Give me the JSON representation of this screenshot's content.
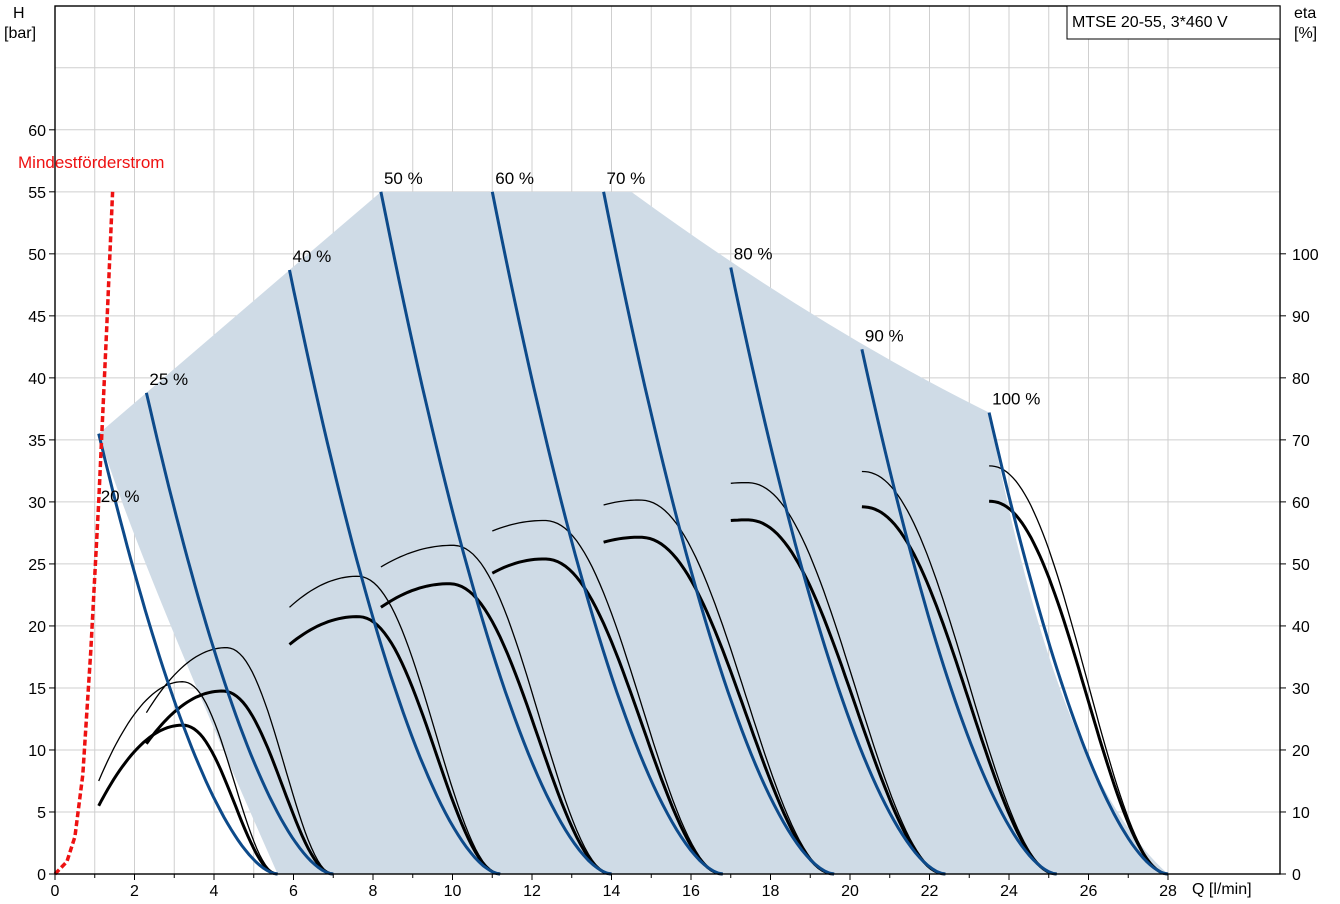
{
  "chart_data": {
    "type": "line",
    "title": "MTSE 20-55, 3*460 V",
    "x_axis": {
      "label": "Q [l/min]",
      "min": 0,
      "max": 28,
      "ticks": [
        0,
        2,
        4,
        6,
        8,
        10,
        12,
        14,
        16,
        18,
        20,
        22,
        24,
        26,
        28
      ]
    },
    "y_axis_left": {
      "label_top": "H",
      "label_unit": "[bar]",
      "min": 0,
      "max": 60,
      "ticks": [
        0,
        5,
        10,
        15,
        20,
        25,
        30,
        35,
        40,
        45,
        50,
        55,
        60
      ]
    },
    "y_axis_right": {
      "label_top": "eta",
      "label_unit": "[%]",
      "min": 0,
      "max": 100,
      "ticks": [
        0,
        10,
        20,
        30,
        40,
        50,
        60,
        70,
        80,
        90,
        100
      ]
    },
    "grid": true,
    "colors": {
      "head_curve": "#0d4a8a",
      "operating_area": "#cfdbe6",
      "min_flow": "#ee1111",
      "efficiency": "#000000"
    },
    "min_flow": {
      "label": "Mindestförderstrom",
      "points": [
        [
          0,
          0
        ],
        [
          0.3,
          1
        ],
        [
          0.5,
          3
        ],
        [
          0.7,
          8
        ],
        [
          0.9,
          18
        ],
        [
          1.1,
          30
        ],
        [
          1.3,
          44
        ],
        [
          1.45,
          55
        ]
      ]
    },
    "operating_envelope": [
      [
        1.1,
        35.5
      ],
      [
        2.3,
        38.8
      ],
      [
        5.9,
        48.7
      ],
      [
        8.2,
        55
      ],
      [
        14.5,
        55
      ],
      [
        23.5,
        37.2
      ],
      [
        28,
        0
      ],
      [
        1.6,
        0
      ]
    ],
    "speed_curves": [
      {
        "label": "20 %",
        "q_start": 1.1,
        "h_start": 35.5,
        "q_end": 5.6
      },
      {
        "label": "25 %",
        "q_start": 2.3,
        "h_start": 38.8,
        "q_end": 7.0
      },
      {
        "label": "40 %",
        "q_start": 5.9,
        "h_start": 48.7,
        "q_end": 11.2
      },
      {
        "label": "50 %",
        "q_start": 8.2,
        "h_start": 55.0,
        "q_end": 14.0
      },
      {
        "label": "60 %",
        "q_start": 11.0,
        "h_start": 55.0,
        "q_end": 16.8
      },
      {
        "label": "70 %",
        "q_start": 13.8,
        "h_start": 55.0,
        "q_end": 19.6
      },
      {
        "label": "80 %",
        "q_start": 17.0,
        "h_start": 48.9,
        "q_end": 22.4
      },
      {
        "label": "90 %",
        "q_start": 20.3,
        "h_start": 42.3,
        "q_end": 25.2
      },
      {
        "label": "100 %",
        "q_start": 23.5,
        "h_start": 37.2,
        "q_end": 28.0
      }
    ],
    "efficiency_curves": [
      {
        "q_start": 1.1,
        "q_peak": 3.2,
        "eta_peak": 24,
        "eta_start": 11,
        "q_end": 5.6,
        "weight": "thick"
      },
      {
        "q_start": 1.1,
        "q_peak": 3.2,
        "eta_peak": 31,
        "eta_start": 15,
        "q_end": 5.6,
        "weight": "thin"
      },
      {
        "q_start": 2.3,
        "q_peak": 4.2,
        "eta_peak": 29.5,
        "eta_start": 21,
        "q_end": 7.0,
        "weight": "thick"
      },
      {
        "q_start": 2.3,
        "q_peak": 4.3,
        "eta_peak": 36.5,
        "eta_start": 26,
        "q_end": 7.0,
        "weight": "thin"
      },
      {
        "q_start": 5.9,
        "q_peak": 7.6,
        "eta_peak": 41.5,
        "eta_start": 37,
        "q_end": 11.2,
        "weight": "thick"
      },
      {
        "q_start": 5.9,
        "q_peak": 7.6,
        "eta_peak": 48,
        "eta_start": 43,
        "q_end": 11.2,
        "weight": "thin"
      },
      {
        "q_start": 8.2,
        "q_peak": 9.9,
        "eta_peak": 46.8,
        "eta_start": 43,
        "q_end": 14.0,
        "weight": "thick"
      },
      {
        "q_start": 8.2,
        "q_peak": 10.0,
        "eta_peak": 53,
        "eta_start": 49.5,
        "q_end": 14.0,
        "weight": "thin"
      },
      {
        "q_start": 11.0,
        "q_peak": 12.3,
        "eta_peak": 50.8,
        "eta_start": 48.5,
        "q_end": 16.8,
        "weight": "thick"
      },
      {
        "q_start": 11.0,
        "q_peak": 12.3,
        "eta_peak": 57,
        "eta_start": 55.3,
        "q_end": 16.8,
        "weight": "thin"
      },
      {
        "q_start": 13.8,
        "q_peak": 14.7,
        "eta_peak": 54.3,
        "eta_start": 53.5,
        "q_end": 19.6,
        "weight": "thick"
      },
      {
        "q_start": 13.8,
        "q_peak": 14.7,
        "eta_peak": 60.3,
        "eta_start": 59.5,
        "q_end": 19.6,
        "weight": "thin"
      },
      {
        "q_start": 17.0,
        "q_peak": 17.4,
        "eta_peak": 57.1,
        "eta_start": 57,
        "q_end": 22.4,
        "weight": "thick"
      },
      {
        "q_start": 17.0,
        "q_peak": 17.4,
        "eta_peak": 63.1,
        "eta_start": 63,
        "q_end": 22.4,
        "weight": "thin"
      },
      {
        "q_start": 20.3,
        "q_peak": 20.3,
        "eta_peak": 59.2,
        "eta_start": 59.2,
        "q_end": 25.2,
        "weight": "thick"
      },
      {
        "q_start": 20.3,
        "q_peak": 20.3,
        "eta_peak": 64.9,
        "eta_start": 64.9,
        "q_end": 25.2,
        "weight": "thin"
      },
      {
        "q_start": 23.5,
        "q_peak": 23.5,
        "eta_peak": 60.1,
        "eta_start": 60.1,
        "q_end": 28.0,
        "weight": "thick"
      },
      {
        "q_start": 23.5,
        "q_peak": 23.5,
        "eta_peak": 65.8,
        "eta_start": 65.8,
        "q_end": 28.0,
        "weight": "thin"
      }
    ]
  }
}
